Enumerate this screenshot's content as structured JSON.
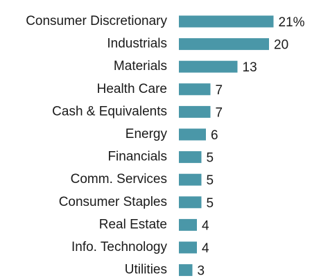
{
  "chart_data": {
    "type": "bar",
    "orientation": "horizontal",
    "categories": [
      "Consumer Discretionary",
      "Industrials",
      "Materials",
      "Health Care",
      "Cash & Equivalents",
      "Energy",
      "Financials",
      "Comm. Services",
      "Consumer Staples",
      "Real Estate",
      "Info. Technology",
      "Utilities"
    ],
    "values": [
      21,
      20,
      13,
      7,
      7,
      6,
      5,
      5,
      5,
      4,
      4,
      3
    ],
    "value_labels": [
      "21%",
      "20",
      "13",
      "7",
      "7",
      "6",
      "5",
      "5",
      "5",
      "4",
      "4",
      "3"
    ],
    "color": "#4a97a8"
  }
}
